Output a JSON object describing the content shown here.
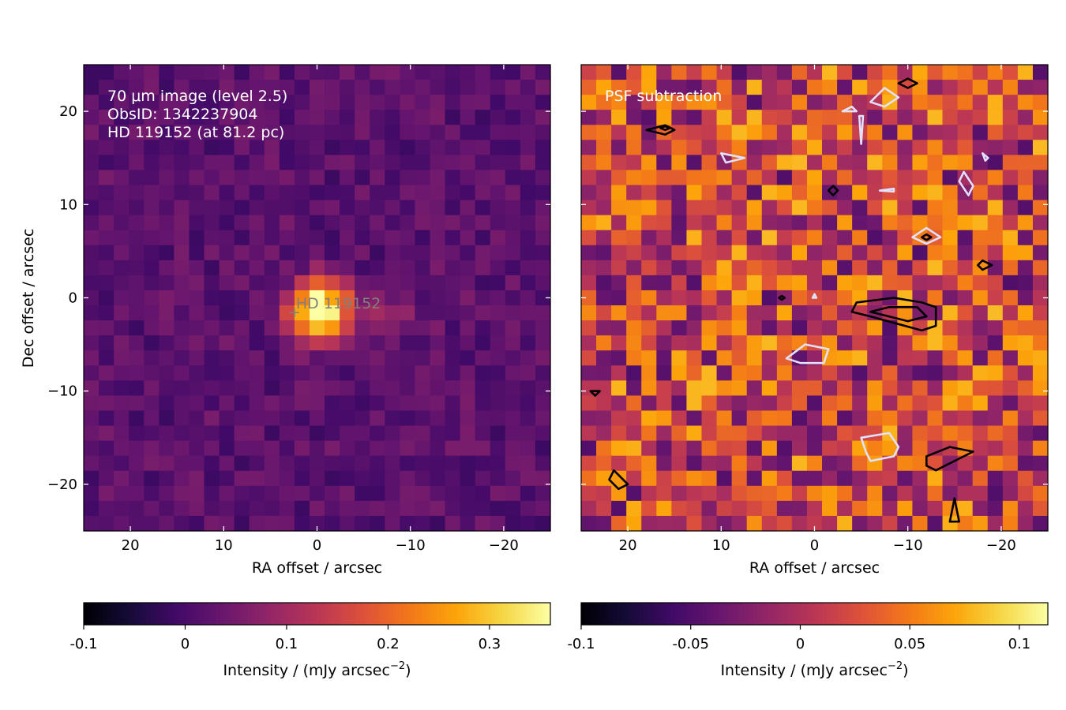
{
  "chart_data": [
    {
      "type": "heatmap",
      "title": "",
      "xlabel": "RA offset / arcsec",
      "ylabel": "Dec offset / arcsec",
      "xlim": [
        25,
        -25
      ],
      "ylim": [
        -25,
        25
      ],
      "xticks": [
        20,
        10,
        0,
        -10,
        -20
      ],
      "yticks": [
        20,
        10,
        0,
        -10,
        -20
      ],
      "xtick_labels": [
        "20",
        "10",
        "0",
        "−10",
        "−20"
      ],
      "ytick_labels": [
        "20",
        "10",
        "0",
        "−10",
        "−20"
      ],
      "annotation": [
        "70 μm image (level 2.5)",
        "ObsID: 1342237904",
        "HD 119152 (at 81.2 pc)"
      ],
      "star_label": "HD 119152",
      "star_marker": "+",
      "star_position": [
        2.5,
        -1.5
      ],
      "colormap": "inferno",
      "pixel_size": 1.6,
      "colorbar": {
        "label": "Intensity / (mJy arcsec",
        "label_exp": "−2",
        "label_end": ")",
        "range": [
          -0.1,
          0.36
        ],
        "ticks": [
          -0.1,
          0,
          0.1,
          0.2,
          0.3
        ],
        "tick_labels": [
          "-0.1",
          "0",
          "0.1",
          "0.2",
          "0.3"
        ]
      },
      "peak": {
        "ra": 0,
        "dec": -1,
        "value": 0.36
      }
    },
    {
      "type": "heatmap",
      "title": "",
      "xlabel": "RA offset / arcsec",
      "ylabel": "",
      "xlim": [
        25,
        -25
      ],
      "ylim": [
        -25,
        25
      ],
      "xticks": [
        20,
        10,
        0,
        -10,
        -20
      ],
      "xtick_labels": [
        "20",
        "10",
        "0",
        "−10",
        "−20"
      ],
      "annotation": [
        "PSF subtraction"
      ],
      "colormap": "inferno",
      "pixel_size": 1.6,
      "colorbar": {
        "label": "Intensity / (mJy arcsec",
        "label_exp": "−2",
        "label_end": ")",
        "range": [
          -0.1,
          0.113
        ],
        "ticks": [
          -0.1,
          -0.05,
          0,
          0.05,
          0.1
        ],
        "tick_labels": [
          "-0.1",
          "-0.05",
          "0",
          "0.05",
          "0.1"
        ]
      },
      "contours": [
        {
          "color": "#000000",
          "points": [
            [
              -4.5,
              -0.5
            ],
            [
              -8.5,
              0
            ],
            [
              -11.5,
              -0.5
            ],
            [
              -13,
              -1
            ],
            [
              -13,
              -3
            ],
            [
              -11.5,
              -3.5
            ],
            [
              -6,
              -2
            ],
            [
              -4,
              -1.5
            ]
          ]
        },
        {
          "color": "#000000",
          "points": [
            [
              -6,
              -1.5
            ],
            [
              -8,
              -1
            ],
            [
              -11,
              -1
            ],
            [
              -12,
              -2
            ],
            [
              -10,
              -2.5
            ]
          ]
        },
        {
          "color": "#000000",
          "points": [
            [
              -12,
              -17
            ],
            [
              -14.5,
              -16
            ],
            [
              -17,
              -16.5
            ],
            [
              -13,
              -18.5
            ],
            [
              -12,
              -18
            ]
          ]
        },
        {
          "color": "#000000",
          "points": [
            [
              -14.5,
              -24
            ],
            [
              -15,
              -21.5
            ],
            [
              -15.5,
              -24
            ]
          ]
        },
        {
          "color": "#000000",
          "points": [
            [
              22,
              -19.5
            ],
            [
              21.5,
              -18.5
            ],
            [
              20,
              -20
            ],
            [
              21,
              -20.5
            ]
          ]
        },
        {
          "color": "#000000",
          "points": [
            [
              24,
              -10
            ],
            [
              23.5,
              -10.5
            ],
            [
              23,
              -10
            ]
          ]
        },
        {
          "color": "#000000",
          "points": [
            [
              18,
              18
            ],
            [
              16,
              18.5
            ],
            [
              15,
              18
            ],
            [
              16,
              17.5
            ]
          ]
        },
        {
          "color": "#000000",
          "points": [
            [
              -9,
              23
            ],
            [
              -10,
              23.5
            ],
            [
              -11,
              23
            ],
            [
              -10,
              22.5
            ]
          ]
        },
        {
          "color": "#000000",
          "points": [
            [
              -2,
              12
            ],
            [
              -1.5,
              11.5
            ],
            [
              -2,
              11
            ],
            [
              -2.5,
              11.5
            ]
          ]
        },
        {
          "color": "#000000",
          "points": [
            [
              -17.5,
              3.5
            ],
            [
              -18,
              4
            ],
            [
              -19,
              3.5
            ],
            [
              -18,
              3
            ]
          ]
        },
        {
          "color": "#000000",
          "points": [
            [
              3.5,
              0.2
            ],
            [
              3.2,
              0
            ],
            [
              3.5,
              -0.2
            ],
            [
              3.8,
              0
            ]
          ]
        },
        {
          "color": "#000000",
          "points": [
            [
              -11.5,
              6.5
            ],
            [
              -12,
              6.8
            ],
            [
              -12.5,
              6.5
            ],
            [
              -12,
              6.2
            ]
          ]
        },
        {
          "color": "#000000",
          "points": [
            [
              16.5,
              18.2
            ],
            [
              16,
              18.4
            ],
            [
              15.5,
              18.2
            ],
            [
              16,
              18
            ]
          ]
        },
        {
          "color": "#e0e0ff",
          "points": [
            [
              1,
              -5
            ],
            [
              3,
              -6.5
            ],
            [
              1.5,
              -7
            ],
            [
              -1,
              -7
            ],
            [
              -1.5,
              -5.5
            ]
          ]
        },
        {
          "color": "#e0e0ff",
          "points": [
            [
              -5,
              -15
            ],
            [
              -8,
              -14.5
            ],
            [
              -9,
              -16
            ],
            [
              -8.5,
              -17
            ],
            [
              -6,
              -17.5
            ],
            [
              -5.5,
              -16.5
            ]
          ]
        },
        {
          "color": "#e0e0ff",
          "points": [
            [
              -6,
              21
            ],
            [
              -7.5,
              22.5
            ],
            [
              -9,
              21.5
            ],
            [
              -7.5,
              20.5
            ]
          ]
        },
        {
          "color": "#e0e0ff",
          "points": [
            [
              -10.5,
              6.5
            ],
            [
              -12,
              7.5
            ],
            [
              -13.5,
              6.5
            ],
            [
              -12,
              5.8
            ]
          ]
        },
        {
          "color": "#e0e0ff",
          "points": [
            [
              -16,
              13.5
            ],
            [
              -17,
              12
            ],
            [
              -16.5,
              11
            ],
            [
              -15.5,
              12.5
            ]
          ]
        },
        {
          "color": "#e0e0ff",
          "points": [
            [
              7.5,
              15
            ],
            [
              10,
              15.5
            ],
            [
              9.5,
              14.5
            ]
          ]
        },
        {
          "color": "#e0e0ff",
          "points": [
            [
              -3,
              20
            ],
            [
              -4,
              20.5
            ],
            [
              -4.5,
              20
            ]
          ]
        },
        {
          "color": "#e0e0ff",
          "points": [
            [
              -4.8,
              19.5
            ],
            [
              -5,
              16.5
            ],
            [
              -5.2,
              19.5
            ]
          ]
        },
        {
          "color": "#e0e0ff",
          "points": [
            [
              -7,
              11.5
            ],
            [
              -8.5,
              11.7
            ],
            [
              -8.5,
              11.4
            ]
          ]
        },
        {
          "color": "#e0e0ff",
          "points": [
            [
              -18,
              15.5
            ],
            [
              -18.3,
              14.7
            ],
            [
              -18.6,
              15
            ]
          ]
        },
        {
          "color": "#e0e0ff",
          "points": [
            [
              0,
              0.4
            ],
            [
              -0.2,
              0
            ],
            [
              0.2,
              0
            ]
          ]
        }
      ]
    }
  ]
}
